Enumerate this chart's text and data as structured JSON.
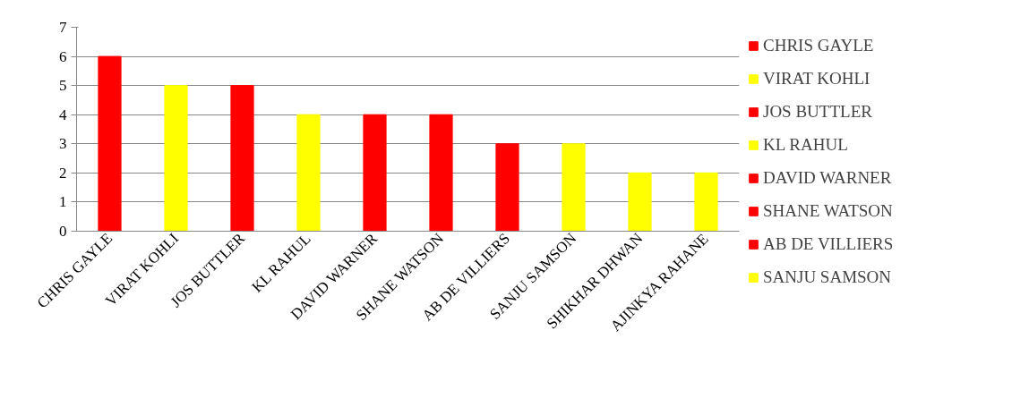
{
  "chart_data": {
    "type": "bar",
    "categories": [
      "CHRIS GAYLE",
      "VIRAT KOHLI",
      "JOS BUTTLER",
      "KL RAHUL",
      "DAVID WARNER",
      "SHANE WATSON",
      "AB DE VILLIERS",
      "SANJU SAMSON",
      "SHIKHAR DHWAN",
      "AJINKYA RAHANE"
    ],
    "series": [
      {
        "name": "CHRIS GAYLE",
        "color": "#ff0000",
        "values": [
          6,
          null,
          null,
          null,
          null,
          null,
          null,
          null,
          null,
          null
        ]
      },
      {
        "name": "VIRAT KOHLI",
        "color": "#ffff00",
        "values": [
          null,
          5,
          null,
          null,
          null,
          null,
          null,
          null,
          null,
          null
        ]
      },
      {
        "name": "JOS BUTTLER",
        "color": "#ff0000",
        "values": [
          null,
          null,
          5,
          null,
          null,
          null,
          null,
          null,
          null,
          null
        ]
      },
      {
        "name": "KL RAHUL",
        "color": "#ffff00",
        "values": [
          null,
          null,
          null,
          4,
          null,
          null,
          null,
          null,
          null,
          null
        ]
      },
      {
        "name": "DAVID WARNER",
        "color": "#ff0000",
        "values": [
          null,
          null,
          null,
          null,
          4,
          null,
          null,
          null,
          null,
          null
        ]
      },
      {
        "name": "SHANE WATSON",
        "color": "#ff0000",
        "values": [
          null,
          null,
          null,
          null,
          null,
          4,
          null,
          null,
          null,
          null
        ]
      },
      {
        "name": "AB DE VILLIERS",
        "color": "#ff0000",
        "values": [
          null,
          null,
          null,
          null,
          null,
          null,
          3,
          null,
          null,
          null
        ]
      },
      {
        "name": "SANJU SAMSON",
        "color": "#ffff00",
        "values": [
          null,
          null,
          null,
          null,
          null,
          null,
          null,
          3,
          null,
          null
        ]
      },
      {
        "color": "#ffff00",
        "values": [
          null,
          null,
          null,
          null,
          null,
          null,
          null,
          null,
          2,
          null
        ]
      },
      {
        "color": "#ffff00",
        "values": [
          null,
          null,
          null,
          null,
          null,
          null,
          null,
          null,
          null,
          2
        ]
      }
    ],
    "ylim": [
      0,
      7
    ],
    "yticks": [
      0,
      1,
      2,
      3,
      4,
      5,
      6,
      7
    ],
    "grid": "y",
    "legend": "right"
  }
}
